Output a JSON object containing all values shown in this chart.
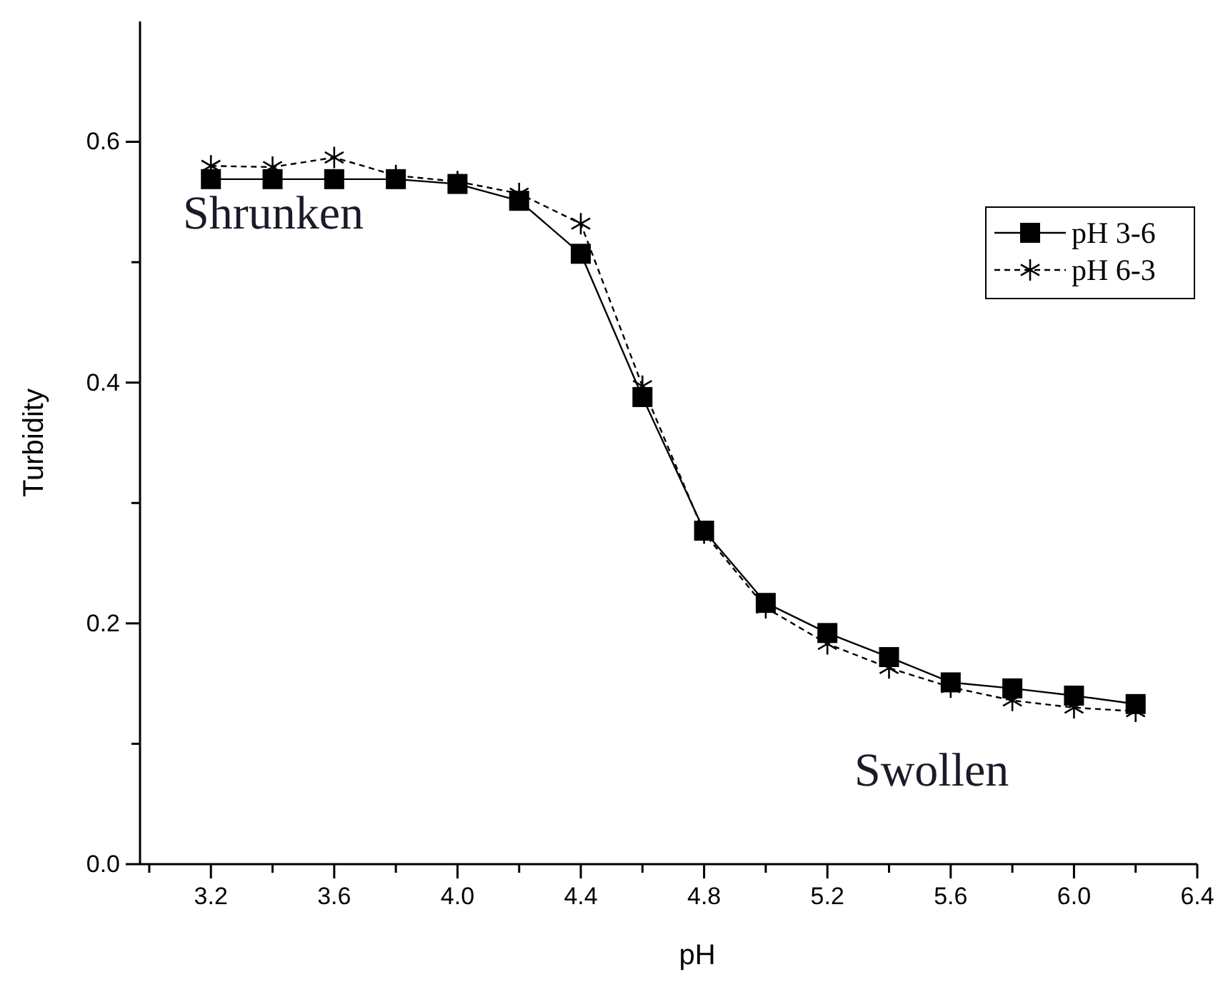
{
  "chart_data": {
    "type": "line",
    "xlabel": "pH",
    "ylabel": "Turbidity",
    "annotations": [
      "Shrunken",
      "Swollen"
    ],
    "x": [
      3.2,
      3.4,
      3.6,
      3.8,
      4.0,
      4.2,
      4.4,
      4.6,
      4.8,
      5.0,
      5.2,
      5.4,
      5.6,
      5.8,
      6.0,
      6.2
    ],
    "series": [
      {
        "name": "pH 3-6",
        "color": "#000000",
        "marker": "square",
        "line_style": "solid",
        "values": [
          0.569,
          0.569,
          0.569,
          0.569,
          0.565,
          0.551,
          0.507,
          0.388,
          0.277,
          0.217,
          0.192,
          0.172,
          0.151,
          0.146,
          0.14,
          0.133
        ]
      },
      {
        "name": "pH 6-3",
        "color": "#000000",
        "marker": "cross",
        "line_style": "dashed",
        "values": [
          0.58,
          0.579,
          0.587,
          0.572,
          0.567,
          0.557,
          0.532,
          0.397,
          0.275,
          0.213,
          0.183,
          0.163,
          0.147,
          0.136,
          0.13,
          0.127
        ]
      }
    ],
    "xlim": [
      2.97,
      6.4
    ],
    "ylim": [
      0,
      0.7
    ],
    "xticks": [
      {
        "value": 3.0,
        "label": null
      },
      {
        "value": 3.2,
        "label": "3.2"
      },
      {
        "value": 3.4,
        "label": null
      },
      {
        "value": 3.6,
        "label": "3.6"
      },
      {
        "value": 3.8,
        "label": null
      },
      {
        "value": 4.0,
        "label": "4.0"
      },
      {
        "value": 4.2,
        "label": null
      },
      {
        "value": 4.4,
        "label": "4.4"
      },
      {
        "value": 4.6,
        "label": null
      },
      {
        "value": 4.8,
        "label": "4.8"
      },
      {
        "value": 5.0,
        "label": null
      },
      {
        "value": 5.2,
        "label": "5.2"
      },
      {
        "value": 5.4,
        "label": null
      },
      {
        "value": 5.6,
        "label": "5.6"
      },
      {
        "value": 5.8,
        "label": null
      },
      {
        "value": 6.0,
        "label": "6.0"
      },
      {
        "value": 6.2,
        "label": null
      },
      {
        "value": 6.4,
        "label": "6.4"
      }
    ],
    "yticks": [
      {
        "value": 0,
        "label": "0.0"
      },
      {
        "value": 0.1,
        "label": null
      },
      {
        "value": 0.2,
        "label": "0.2"
      },
      {
        "value": 0.3,
        "label": null
      },
      {
        "value": 0.4,
        "label": "0.4"
      },
      {
        "value": 0.5,
        "label": null
      },
      {
        "value": 0.6,
        "label": "0.6"
      }
    ],
    "grid": false,
    "legend": "top right"
  }
}
